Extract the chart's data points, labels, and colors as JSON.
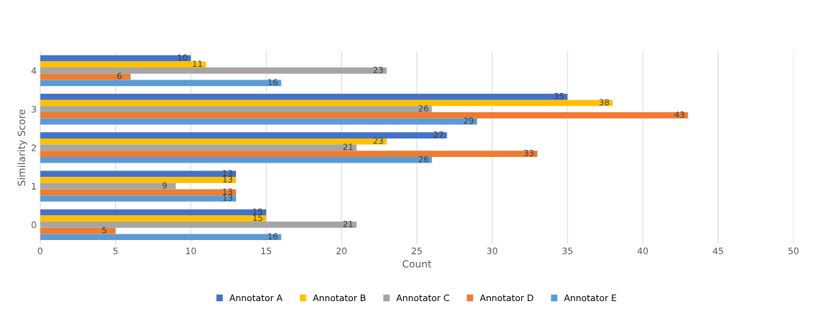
{
  "chart_data": {
    "type": "bar",
    "orientation": "horizontal",
    "xlabel": "Count",
    "ylabel": "Similarity Score",
    "categories": [
      "4",
      "3",
      "2",
      "1",
      "0"
    ],
    "series": [
      {
        "name": "Annotator A",
        "color": "#4472c4",
        "values": [
          10,
          35,
          27,
          13,
          15
        ]
      },
      {
        "name": "Annotator B",
        "color": "#ffc000",
        "values": [
          11,
          38,
          23,
          13,
          15
        ]
      },
      {
        "name": "Annotator C",
        "color": "#a5a5a5",
        "values": [
          23,
          26,
          21,
          9,
          21
        ]
      },
      {
        "name": "Annotator D",
        "color": "#ed7d31",
        "values": [
          6,
          43,
          33,
          13,
          5
        ]
      },
      {
        "name": "Annotator E",
        "color": "#5b9bd5",
        "values": [
          16,
          29,
          26,
          13,
          16
        ]
      }
    ],
    "xlim": [
      0,
      50
    ],
    "xticks": [
      0,
      5,
      10,
      15,
      20,
      25,
      30,
      35,
      40,
      45,
      50
    ],
    "grid": "x",
    "legend": "bottom",
    "data_labels": true
  }
}
